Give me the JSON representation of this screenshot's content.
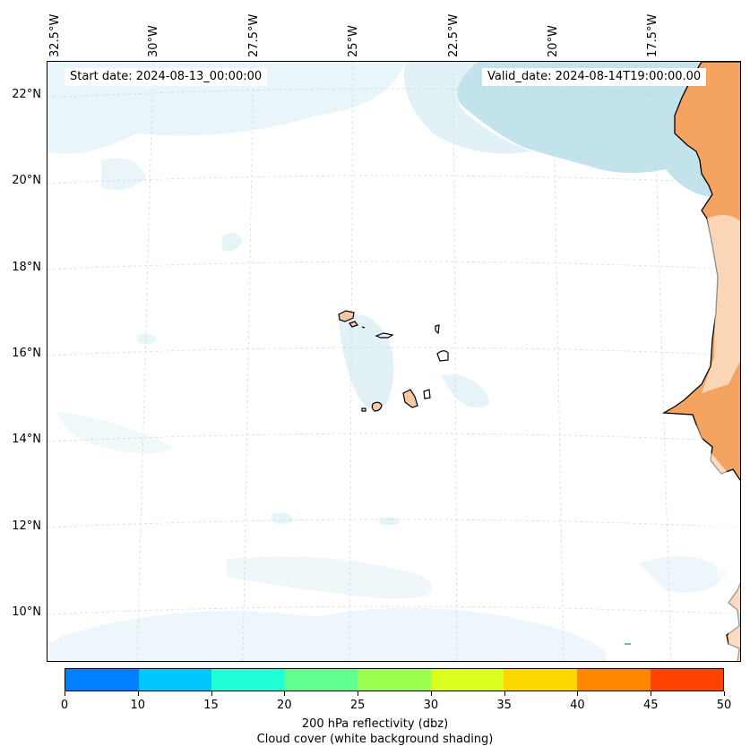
{
  "map": {
    "start_date": "Start date: 2024-08-13_00:00:00",
    "valid_date": "Valid_date: 2024-08-14T19:00:00.00",
    "longitude_labels": [
      "32.5°W",
      "30°W",
      "27.5°W",
      "25°W",
      "22.5°W",
      "20°W",
      "17.5°W"
    ],
    "latitude_labels": [
      "22°N",
      "20°N",
      "18°N",
      "16°N",
      "14°N",
      "12°N",
      "10°N"
    ],
    "land_fill_color": "#f4a460",
    "cloud_color": "#add8e6",
    "coastline_color": "#000000",
    "gridline_color": "#cccccc"
  },
  "colorbar": {
    "ticks": [
      "0",
      "10",
      "15",
      "20",
      "25",
      "30",
      "35",
      "40",
      "45",
      "50"
    ],
    "colors": [
      "#0080ff",
      "#00c8ff",
      "#20ffd8",
      "#60ff90",
      "#9cff50",
      "#dcff20",
      "#ffd800",
      "#ff8800",
      "#ff4400"
    ],
    "title_line1": "200 hPa reflectivity (dbz)",
    "title_line2": "Cloud cover (white background shading)"
  }
}
